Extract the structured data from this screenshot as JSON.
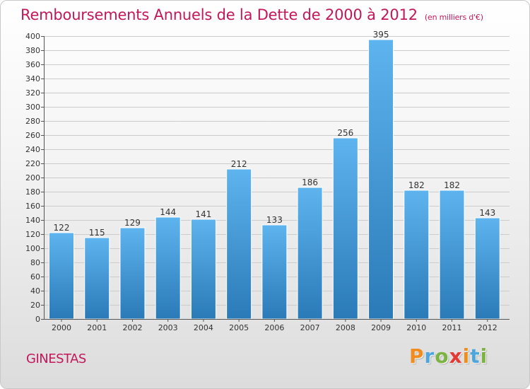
{
  "header": {
    "title": "Remboursements Annuels de la Dette de 2000 à 2012",
    "subtitle": "(en milliers d'€)"
  },
  "footer": {
    "city": "GINESTAS",
    "brand_letters": [
      "P",
      "r",
      "o",
      "x",
      "i",
      "t",
      "i"
    ],
    "brand_colors": [
      "#f28c1e",
      "#4fa6dc",
      "#7cb342",
      "#e53935",
      "#f28c1e",
      "#4fa6dc",
      "#7cb342"
    ]
  },
  "colors": {
    "bar_top": "#5eb4ee",
    "bar_bottom": "#2a7ab8",
    "accent": "#c2185b",
    "gridline": "#cccccc"
  },
  "chart_data": {
    "type": "bar",
    "categories": [
      "2000",
      "2001",
      "2002",
      "2003",
      "2004",
      "2005",
      "2006",
      "2007",
      "2008",
      "2009",
      "2010",
      "2011",
      "2012"
    ],
    "values": [
      122,
      115,
      129,
      144,
      141,
      212,
      133,
      186,
      256,
      395,
      182,
      182,
      143
    ],
    "value_labels": [
      "122",
      "115",
      "129",
      "144",
      "141",
      "212",
      "133",
      "186",
      "256",
      "395",
      "182",
      "182",
      "143"
    ],
    "ylim": [
      0,
      400
    ],
    "yticks": [
      0,
      20,
      40,
      60,
      80,
      100,
      120,
      140,
      160,
      180,
      200,
      220,
      240,
      260,
      280,
      300,
      320,
      340,
      360,
      380,
      400
    ],
    "ytick_labels": [
      "0",
      "20",
      "40",
      "60",
      "80",
      "100",
      "120",
      "140",
      "160",
      "180",
      "200",
      "220",
      "240",
      "260",
      "280",
      "300",
      "320",
      "340",
      "360",
      "380",
      "400"
    ],
    "grid": true,
    "title": "Remboursements Annuels de la Dette de 2000 à 2012",
    "xlabel": "",
    "ylabel": ""
  }
}
